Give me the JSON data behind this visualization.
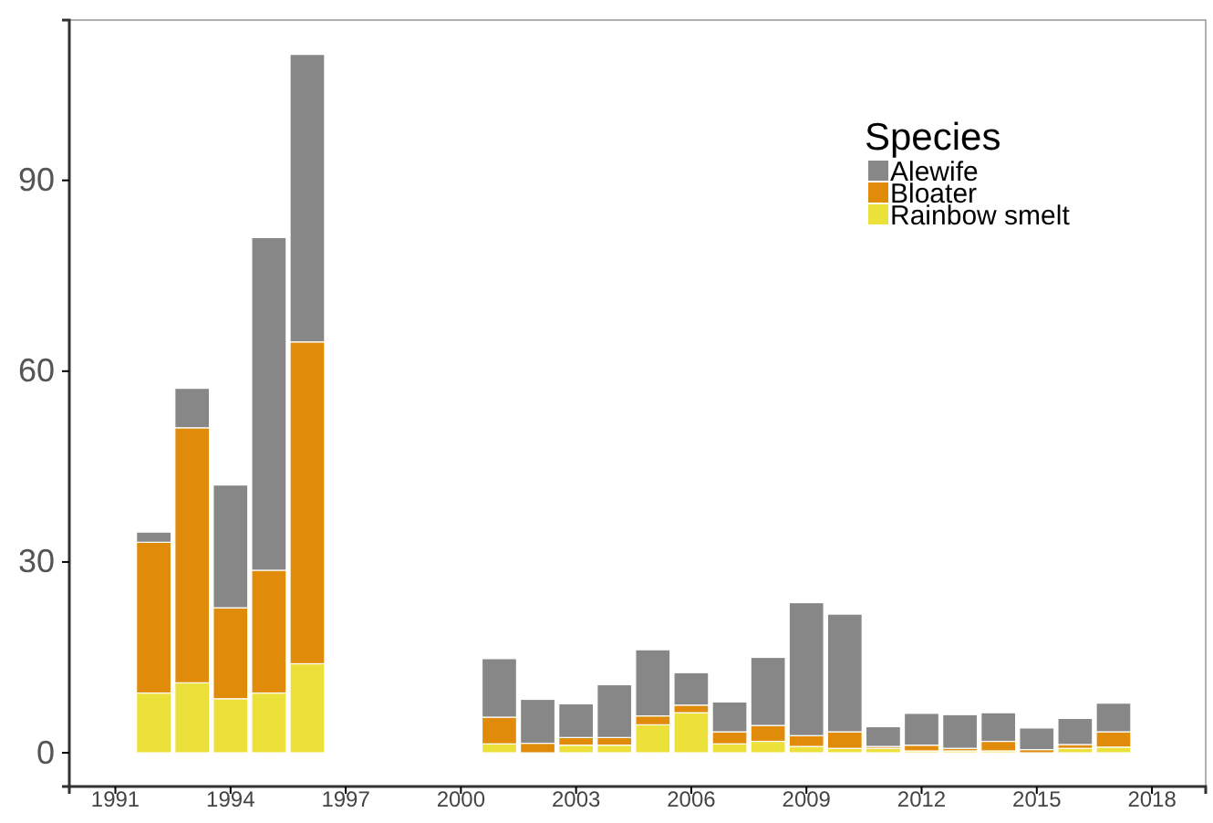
{
  "chart_data": {
    "type": "bar",
    "stacked": true,
    "legend_title": "Species",
    "legend": "top right",
    "grid": false,
    "x": [
      1992,
      1993,
      1994,
      1995,
      1996,
      2001,
      2002,
      2003,
      2004,
      2005,
      2006,
      2007,
      2008,
      2009,
      2010,
      2011,
      2012,
      2013,
      2014,
      2015,
      2016,
      2017
    ],
    "series": [
      {
        "name": "Rainbow smelt",
        "color": "#ece03a",
        "values": [
          9.4,
          11.0,
          8.5,
          9.4,
          14.0,
          1.4,
          0,
          1.2,
          1.2,
          4.4,
          6.3,
          1.4,
          1.8,
          1.0,
          0.7,
          0.7,
          0.3,
          0.3,
          0.3,
          null,
          0.7,
          0.9
        ]
      },
      {
        "name": "Bloater",
        "color": "#e08c0a",
        "values": [
          23.7,
          40.1,
          14.3,
          19.3,
          50.6,
          4.2,
          1.5,
          1.2,
          1.2,
          1.4,
          1.2,
          1.9,
          2.5,
          1.7,
          2.6,
          0.3,
          0.9,
          0.4,
          1.5,
          0.5,
          0.6,
          2.4
        ]
      },
      {
        "name": "Alewife",
        "color": "#878787",
        "values": [
          1.6,
          6.2,
          19.3,
          52.3,
          45.2,
          9.2,
          6.9,
          5.3,
          8.3,
          10.4,
          5.1,
          4.7,
          10.7,
          20.9,
          18.5,
          3.1,
          5.0,
          5.3,
          4.5,
          3.4,
          4.1,
          4.5
        ]
      }
    ],
    "xlim": [
      1989.8,
      2019.4
    ],
    "xticks": [
      1991,
      1994,
      1997,
      2000,
      2003,
      2006,
      2009,
      2012,
      2015,
      2018
    ],
    "ylim": [
      -5.3,
      115.2
    ],
    "yticks": [
      0,
      30,
      60,
      90
    ]
  }
}
